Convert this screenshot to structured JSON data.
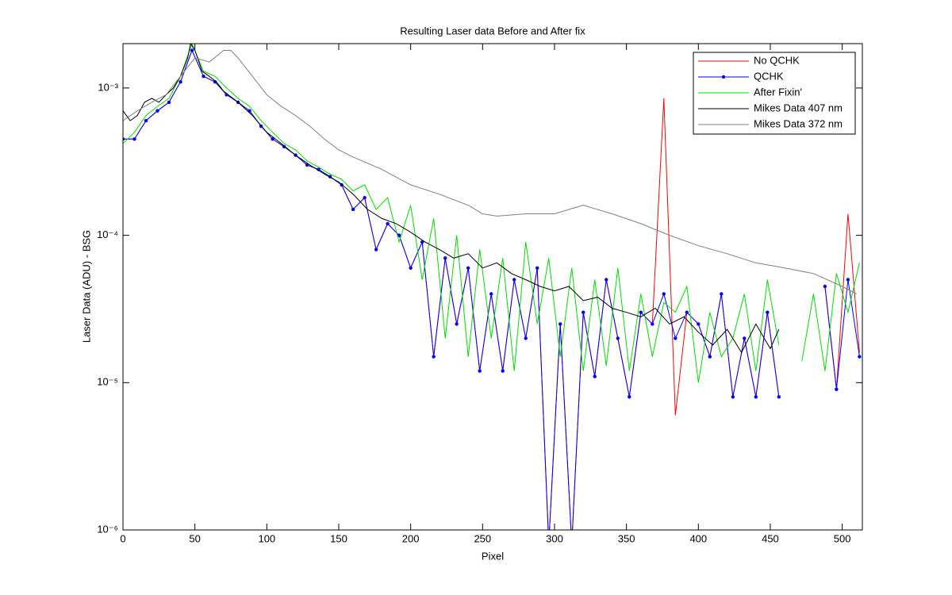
{
  "chart_data": {
    "type": "line",
    "title": "Resulting Laser data Before and After fix",
    "x_label": "Pixel",
    "y_label": "Laser Data (ADU) - BSG",
    "xlim": [
      0,
      514
    ],
    "xticks": [
      0,
      50,
      100,
      150,
      200,
      250,
      300,
      350,
      400,
      450,
      500
    ],
    "ylim": [
      1e-06,
      0.002
    ],
    "yticks": [
      {
        "value": 1e-06,
        "label": "10⁻⁶"
      },
      {
        "value": 1e-05,
        "label": "10⁻⁵"
      },
      {
        "value": 0.0001,
        "label": "10⁻⁴"
      },
      {
        "value": 0.001,
        "label": "10⁻³"
      }
    ],
    "ylog": true,
    "legend": "upper right",
    "series": [
      {
        "name": "No QCHK",
        "color": "#ff0000",
        "marker": false,
        "x": [
          0,
          8,
          16,
          24,
          32,
          40,
          48,
          56,
          64,
          72,
          80,
          88,
          96,
          104,
          112,
          120,
          128,
          136,
          144,
          152,
          160,
          168,
          176,
          184,
          192,
          200,
          208,
          216,
          224,
          232,
          240,
          248,
          256,
          264,
          272,
          280,
          288,
          296,
          304,
          312,
          320,
          328,
          336,
          344,
          352,
          360,
          368,
          376,
          384,
          392,
          400,
          408,
          416,
          424,
          432,
          440,
          448,
          456,
          464,
          472,
          480,
          488,
          496,
          504,
          512
        ],
        "values": [
          0.00045,
          0.00045,
          0.0006,
          0.0007,
          0.0008,
          0.0011,
          0.0018,
          0.0012,
          0.0011,
          0.0009,
          0.0008,
          0.0007,
          0.00055,
          0.00045,
          0.0004,
          0.00035,
          0.0003,
          0.00028,
          0.00025,
          0.00022,
          0.00015,
          0.00018,
          8e-05,
          0.00012,
          0.0001,
          6e-05,
          9e-05,
          1.5e-05,
          7e-05,
          2.5e-05,
          6e-05,
          1.2e-05,
          4e-05,
          1.2e-05,
          5e-05,
          2e-05,
          6e-05,
          8e-07,
          2.5e-05,
          8e-07,
          3e-05,
          1.1e-05,
          5e-05,
          2e-05,
          8e-06,
          3e-05,
          2.5e-05,
          0.00085,
          6e-06,
          3e-05,
          2.5e-05,
          1.5e-05,
          4e-05,
          8e-06,
          2e-05,
          8e-06,
          3e-05,
          8e-06,
          null,
          null,
          null,
          4.5e-05,
          9e-06,
          0.00014,
          1.6e-05
        ]
      },
      {
        "name": "QCHK",
        "color": "#0000ff",
        "marker": true,
        "x": [
          0,
          8,
          16,
          24,
          32,
          40,
          48,
          56,
          64,
          72,
          80,
          88,
          96,
          104,
          112,
          120,
          128,
          136,
          144,
          152,
          160,
          168,
          176,
          184,
          192,
          200,
          208,
          216,
          224,
          232,
          240,
          248,
          256,
          264,
          272,
          280,
          288,
          296,
          304,
          312,
          320,
          328,
          336,
          344,
          352,
          360,
          368,
          376,
          384,
          392,
          400,
          408,
          416,
          424,
          432,
          440,
          448,
          456,
          464,
          472,
          480,
          488,
          496,
          504,
          512
        ],
        "values": [
          0.00045,
          0.00045,
          0.0006,
          0.0007,
          0.0008,
          0.0011,
          0.0018,
          0.0012,
          0.0011,
          0.0009,
          0.0008,
          0.0007,
          0.00055,
          0.00045,
          0.0004,
          0.00035,
          0.0003,
          0.00028,
          0.00025,
          0.00022,
          0.00015,
          0.00018,
          8e-05,
          0.00012,
          0.0001,
          6e-05,
          9e-05,
          1.5e-05,
          7e-05,
          2.5e-05,
          6e-05,
          1.2e-05,
          4e-05,
          1.2e-05,
          5e-05,
          2e-05,
          6e-05,
          8e-07,
          2.5e-05,
          8e-07,
          3e-05,
          1.1e-05,
          5e-05,
          2e-05,
          8e-06,
          3e-05,
          2.5e-05,
          4e-05,
          2e-05,
          3e-05,
          2.5e-05,
          1.5e-05,
          4e-05,
          8e-06,
          2e-05,
          8e-06,
          3e-05,
          8e-06,
          null,
          null,
          null,
          4.5e-05,
          9e-06,
          5e-05,
          1.5e-05
        ]
      },
      {
        "name": "After Fixin'",
        "color": "#00dd00",
        "marker": false,
        "x": [
          0,
          8,
          16,
          24,
          32,
          40,
          48,
          56,
          64,
          72,
          80,
          88,
          96,
          104,
          112,
          120,
          128,
          136,
          144,
          152,
          160,
          168,
          176,
          184,
          192,
          200,
          208,
          216,
          224,
          232,
          240,
          248,
          256,
          264,
          272,
          280,
          288,
          296,
          304,
          312,
          320,
          328,
          336,
          344,
          352,
          360,
          368,
          376,
          384,
          392,
          400,
          408,
          416,
          424,
          432,
          440,
          448,
          456,
          464,
          472,
          480,
          488,
          496,
          504,
          512
        ],
        "values": [
          0.00042,
          0.0005,
          0.00065,
          0.00075,
          0.00085,
          0.0012,
          0.002,
          0.0013,
          0.0012,
          0.001,
          0.00085,
          0.00075,
          0.0006,
          0.0005,
          0.00042,
          0.00038,
          0.00032,
          0.00029,
          0.00026,
          0.00024,
          0.0002,
          0.00022,
          0.00015,
          0.00018,
          9e-05,
          0.00016,
          5e-05,
          0.00013,
          2e-05,
          0.0001,
          1.5e-05,
          8e-05,
          2e-05,
          7e-05,
          1.2e-05,
          9e-05,
          2.5e-05,
          7e-05,
          1.5e-05,
          6e-05,
          1.2e-05,
          5e-05,
          1.3e-05,
          6e-05,
          1.2e-05,
          4e-05,
          1.5e-05,
          3.5e-05,
          3e-05,
          4.5e-05,
          1e-05,
          3e-05,
          1.5e-05,
          2e-05,
          4e-05,
          1.2e-05,
          5e-05,
          1.8e-05,
          null,
          1.4e-05,
          4e-05,
          1.2e-05,
          5.5e-05,
          3e-05,
          6.5e-05
        ]
      },
      {
        "name": "Mikes Data 407 nm",
        "color": "#000000",
        "marker": false,
        "x": [
          0,
          5,
          10,
          15,
          20,
          25,
          30,
          35,
          40,
          45,
          47,
          50,
          55,
          60,
          65,
          70,
          80,
          90,
          100,
          110,
          120,
          130,
          140,
          150,
          160,
          170,
          180,
          190,
          200,
          210,
          220,
          230,
          240,
          250,
          260,
          270,
          280,
          290,
          300,
          310,
          320,
          330,
          340,
          350,
          360,
          370,
          380,
          390,
          400,
          410,
          420,
          430,
          440,
          450,
          456
        ],
        "values": [
          0.0007,
          0.0006,
          0.00065,
          0.0008,
          0.00085,
          0.0008,
          0.0009,
          0.001,
          0.0012,
          0.0016,
          0.002,
          0.0018,
          0.0013,
          0.0012,
          0.0011,
          0.00095,
          0.0008,
          0.00065,
          0.0005,
          0.00042,
          0.00035,
          0.0003,
          0.00026,
          0.00023,
          0.00019,
          0.00015,
          0.00013,
          0.00012,
          0.000105,
          9e-05,
          8e-05,
          7e-05,
          7.5e-05,
          6e-05,
          6.5e-05,
          5.5e-05,
          5e-05,
          4.5e-05,
          4.2e-05,
          4.5e-05,
          3.6e-05,
          3.8e-05,
          3.2e-05,
          3e-05,
          2.8e-05,
          3.2e-05,
          2.5e-05,
          2.8e-05,
          2.2e-05,
          1.8e-05,
          2.3e-05,
          1.6e-05,
          2.5e-05,
          1.7e-05,
          2.3e-05
        ]
      },
      {
        "name": "Mikes Data 372 nm",
        "color": "#808080",
        "marker": false,
        "x": [
          0,
          10,
          20,
          30,
          40,
          50,
          60,
          70,
          75,
          80,
          90,
          100,
          110,
          120,
          130,
          140,
          150,
          160,
          180,
          200,
          220,
          240,
          250,
          260,
          280,
          300,
          320,
          340,
          360,
          380,
          400,
          420,
          440,
          460,
          480,
          500,
          510
        ],
        "values": [
          0.0006,
          0.0007,
          0.0008,
          0.0009,
          0.0012,
          0.0016,
          0.0015,
          0.0018,
          0.0018,
          0.0016,
          0.0012,
          0.0009,
          0.00075,
          0.00065,
          0.00055,
          0.00045,
          0.00038,
          0.00034,
          0.00028,
          0.00022,
          0.00019,
          0.00016,
          0.00014,
          0.000135,
          0.00014,
          0.00014,
          0.00016,
          0.00014,
          0.00012,
          0.0001,
          8.5e-05,
          7.5e-05,
          6.5e-05,
          6e-05,
          5.5e-05,
          4.5e-05,
          4e-05
        ]
      }
    ]
  }
}
